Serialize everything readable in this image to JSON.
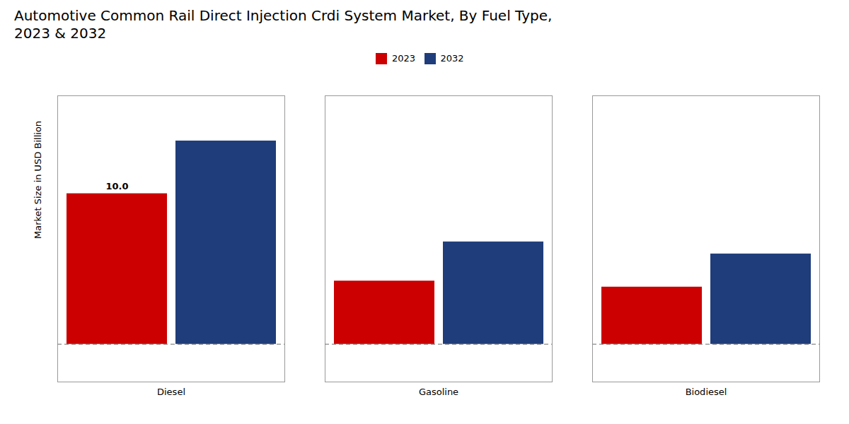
{
  "chart_data": {
    "type": "bar",
    "title": "Automotive Common Rail Direct Injection Crdi System Market, By Fuel Type,",
    "subtitle": "2023 & 2032",
    "ylabel": "Market Size in USD Billion",
    "categories": [
      "Diesel",
      "Gasoline",
      "Biodiesel"
    ],
    "series": [
      {
        "name": "2023",
        "color": "#cc0000",
        "values": [
          10.0,
          4.2,
          3.8
        ]
      },
      {
        "name": "2032",
        "color": "#1f3d7a",
        "values": [
          13.5,
          6.8,
          6.0
        ]
      }
    ],
    "ylim": [
      -2.5,
      16.5
    ],
    "yticks": [],
    "tick_labels": "x",
    "legend": "top",
    "grid": false,
    "annotations": [
      {
        "text": "10.0",
        "category": "Diesel",
        "series": "2023",
        "value": 10.0
      }
    ],
    "reference_lines": [
      {
        "y": 0,
        "line_style": "dashed"
      }
    ]
  }
}
